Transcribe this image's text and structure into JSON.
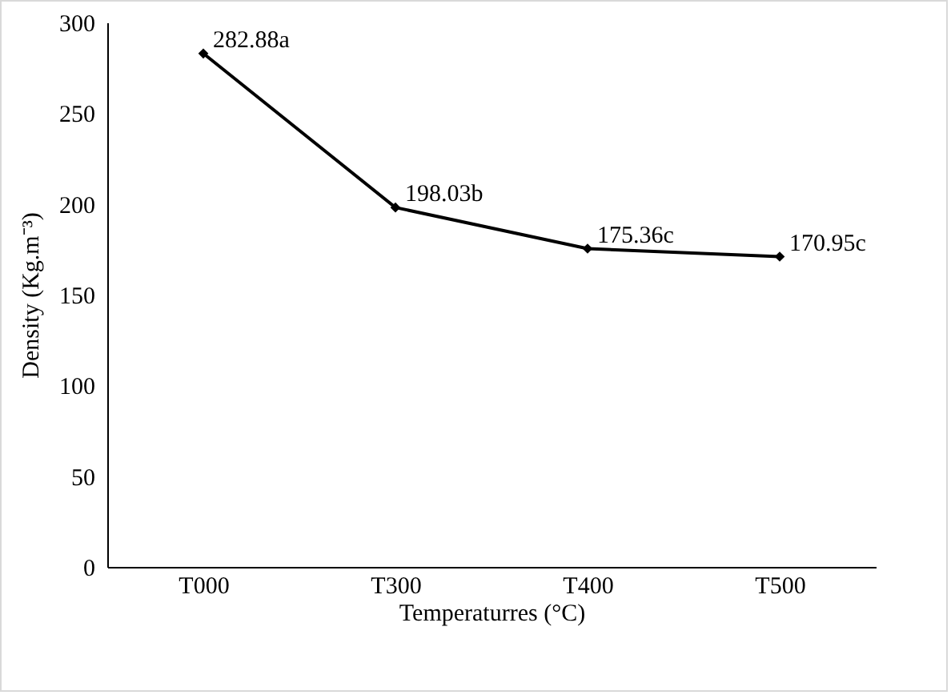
{
  "chart_data": {
    "type": "line",
    "xlabel": "Temperaturres (°C)",
    "ylabel": "Density (Kg.m⁻³)",
    "categories": [
      "T000",
      "T300",
      "T400",
      "T500"
    ],
    "series": [
      {
        "color": "#000000",
        "values": [
          282.88,
          198.03,
          175.36,
          170.95
        ],
        "value_labels": [
          "282.88a",
          "198.03b",
          "175.36c",
          "170.95c"
        ]
      }
    ],
    "ylim": [
      0,
      300
    ],
    "yticks": [
      0,
      50,
      100,
      150,
      200,
      250,
      300
    ],
    "grid": false,
    "marker": "diamond",
    "line_style": "solid"
  }
}
